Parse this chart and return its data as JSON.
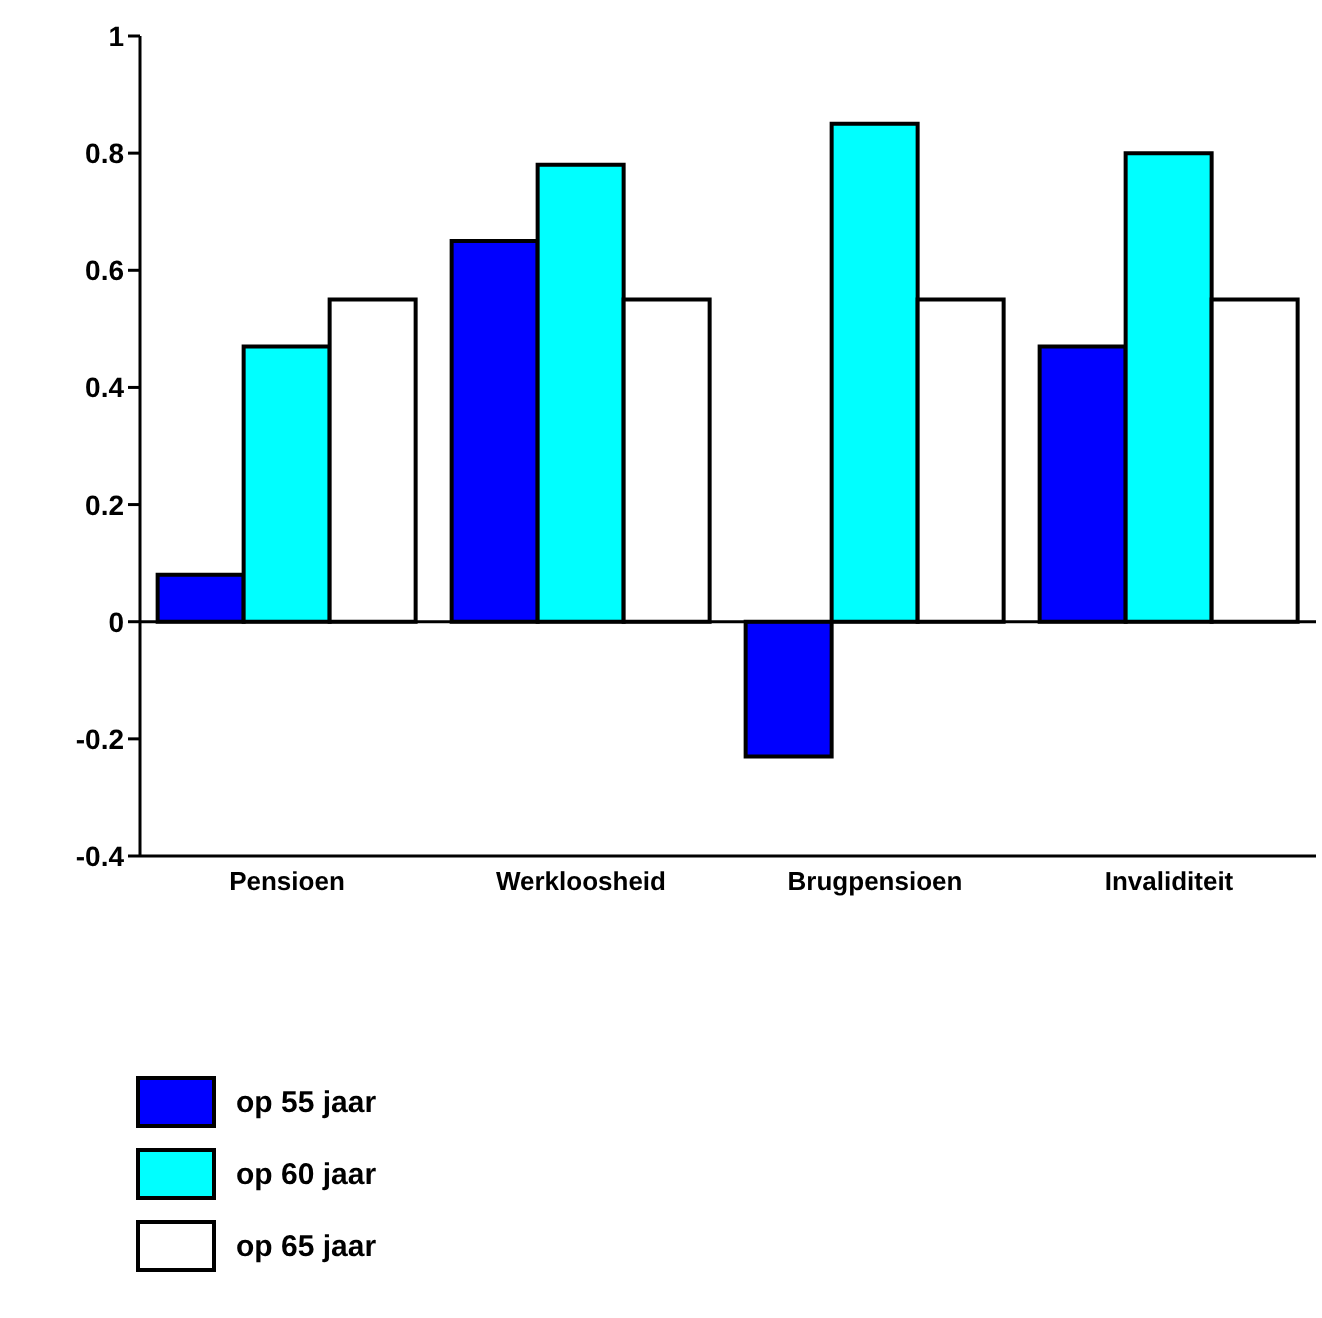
{
  "chart_data": {
    "type": "bar",
    "categories": [
      "Pensioen",
      "Werkloosheid",
      "Brugpensioen",
      "Invaliditeit"
    ],
    "series": [
      {
        "name": "op 55 jaar",
        "color": "#0000ff",
        "values": [
          0.08,
          0.65,
          -0.23,
          0.47
        ]
      },
      {
        "name": "op 60 jaar",
        "color": "#00ffff",
        "values": [
          0.47,
          0.78,
          0.85,
          0.8
        ]
      },
      {
        "name": "op 65 jaar",
        "color": "#ffffff",
        "values": [
          0.55,
          0.55,
          0.55,
          0.55
        ]
      }
    ],
    "ylim": [
      -0.4,
      1
    ],
    "yticks": [
      -0.4,
      -0.2,
      0,
      0.2,
      0.4,
      0.6,
      0.8,
      1
    ],
    "grid": false,
    "legend": "bottom left",
    "ref_lines": [
      {
        "axis": "y",
        "value": 0,
        "color": "#000000"
      }
    ]
  }
}
